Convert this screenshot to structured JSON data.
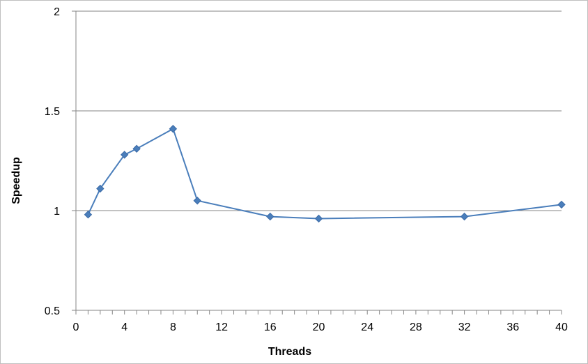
{
  "chart_data": {
    "type": "line",
    "title": "",
    "xlabel": "Threads",
    "ylabel": "Speedup",
    "xlim": [
      0,
      40
    ],
    "ylim": [
      0.5,
      2
    ],
    "xticks": [
      0,
      4,
      8,
      12,
      16,
      20,
      24,
      28,
      32,
      36,
      40
    ],
    "yticks": [
      0.5,
      1,
      1.5,
      2
    ],
    "ytick_labels": [
      "0.5",
      "1",
      "1.5",
      "2"
    ],
    "grid": "horizontal",
    "legend": "none",
    "series": [
      {
        "color": "#4a7ebb",
        "marker": "diamond",
        "x": [
          1,
          2,
          4,
          5,
          8,
          10,
          16,
          20,
          32,
          40
        ],
        "y": [
          0.98,
          1.11,
          1.28,
          1.31,
          1.41,
          1.05,
          0.97,
          0.96,
          0.97,
          1.03
        ]
      }
    ]
  }
}
